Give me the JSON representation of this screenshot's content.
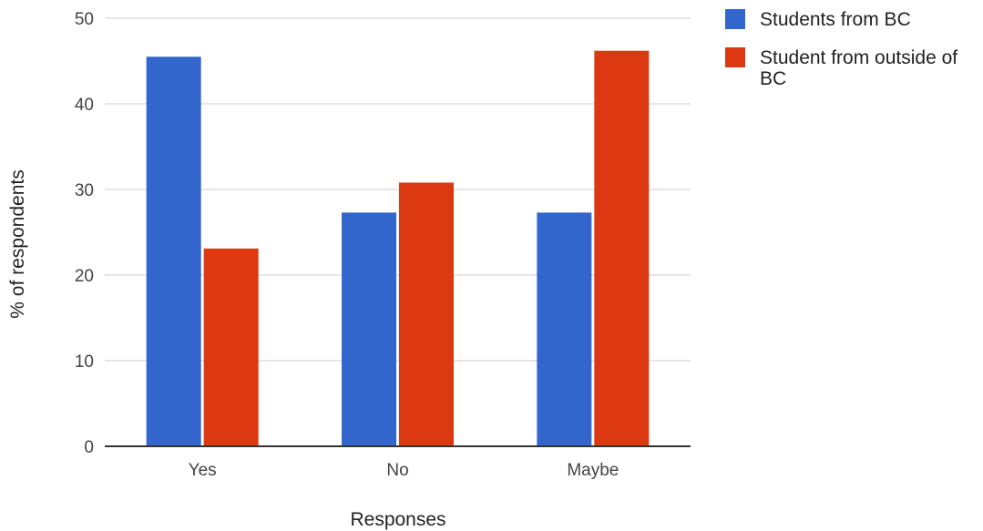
{
  "chart_data": {
    "type": "bar",
    "categories": [
      "Yes",
      "No",
      "Maybe"
    ],
    "series": [
      {
        "name": "Students from BC",
        "values": [
          45.5,
          27.3,
          27.3
        ],
        "color": "#3366cc"
      },
      {
        "name": "Student from outside of BC",
        "values": [
          23.1,
          30.8,
          46.2
        ],
        "color": "#dc3912"
      }
    ],
    "xlabel": "Responses",
    "ylabel": "% of respondents",
    "ylim": [
      0,
      50
    ],
    "yticks": [
      0,
      10,
      20,
      30,
      40,
      50
    ],
    "grid": true,
    "legend_position": "right"
  }
}
